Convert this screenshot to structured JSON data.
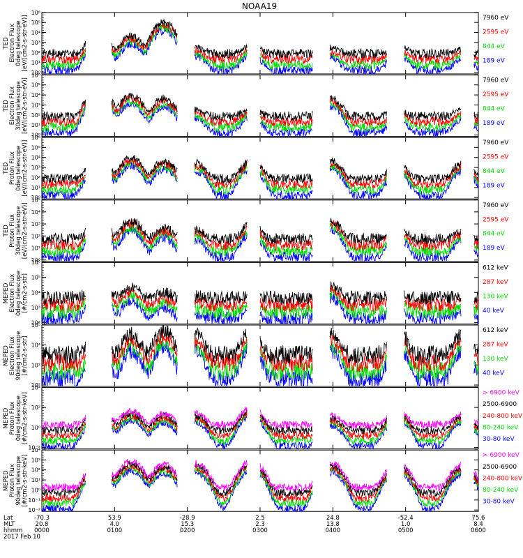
{
  "title": "NOAA19",
  "footer": {
    "row_labels": [
      "Lat",
      "MLT",
      "hhmm",
      "2017 Feb 10"
    ],
    "lat": [
      "-70.3",
      "53.9",
      "-28.9",
      "2.5",
      "24.8",
      "-52.4",
      "75.6"
    ],
    "mlt": [
      "20.8",
      "4.0",
      "15.3",
      "2.3",
      "13.8",
      "1.0",
      "8.4"
    ],
    "hhmm": [
      "0000",
      "0100",
      "0200",
      "0300",
      "0400",
      "0500",
      "0600"
    ]
  },
  "colors": {
    "black": "#000000",
    "red": "#ff0000",
    "green": "#00dd00",
    "blue": "#0000ff",
    "magenta": "#ff00ff"
  },
  "chart_data": [
    {
      "type": "line",
      "ylabel": [
        "TED",
        "Electron Flux",
        "0deg telescope",
        "[eV/(cm2-s-str-eV)]"
      ],
      "y_ticks": [
        "10⁰",
        "10¹",
        "10²",
        "10³",
        "10⁴",
        "10⁵",
        "10⁶"
      ],
      "y_scale": "log",
      "ylim": [
        1,
        1000000
      ],
      "series": [
        {
          "name": "7960 eV",
          "color": "#000000"
        },
        {
          "name": "2595 eV",
          "color": "#ff0000"
        },
        {
          "name": "844 eV",
          "color": "#00dd00"
        },
        {
          "name": "189 eV",
          "color": "#0000ff"
        }
      ],
      "bursts": [
        [
          0.26,
          10000.0
        ],
        [
          0.41,
          5000.0
        ],
        [
          0.56,
          100000.0
        ],
        [
          0.705,
          300.0
        ],
        [
          0.96,
          500.0
        ],
        [
          1.325,
          200.0
        ],
        [
          1.63,
          500.0
        ],
        [
          1.93,
          200.0
        ]
      ]
    },
    {
      "type": "line",
      "ylabel": [
        "TED",
        "Electron Flux",
        "30deg telescope",
        "[eV/(cm2-s-str-eV)]"
      ],
      "y_ticks": [
        "10⁰",
        "10¹",
        "10²",
        "10³",
        "10⁴",
        "10⁵",
        "10⁶"
      ],
      "y_scale": "log",
      "ylim": [
        1,
        1000000
      ],
      "series": [
        {
          "name": "7960 eV",
          "color": "#000000"
        },
        {
          "name": "2595 eV",
          "color": "#ff0000"
        },
        {
          "name": "844 eV",
          "color": "#00dd00"
        },
        {
          "name": "189 eV",
          "color": "#0000ff"
        }
      ],
      "bursts": [
        [
          0.26,
          50000.0
        ],
        [
          0.41,
          10000.0
        ],
        [
          0.56,
          5000.0
        ],
        [
          0.705,
          300.0
        ],
        [
          0.96,
          500.0
        ],
        [
          1.325,
          5000.0
        ],
        [
          1.63,
          300.0
        ],
        [
          1.93,
          300.0
        ]
      ]
    },
    {
      "type": "line",
      "ylabel": [
        "TED",
        "Proton Flux",
        "0deg telescope",
        "[eV/(cm2-s-str-eV)]"
      ],
      "y_ticks": [
        "10⁰",
        "10¹",
        "10²",
        "10³",
        "10⁴",
        "10⁵",
        "10⁶"
      ],
      "y_scale": "log",
      "ylim": [
        1,
        1000000
      ],
      "series": [
        {
          "name": "7960 eV",
          "color": "#000000"
        },
        {
          "name": "2595 eV",
          "color": "#ff0000"
        },
        {
          "name": "844 eV",
          "color": "#00dd00"
        },
        {
          "name": "189 eV",
          "color": "#0000ff"
        }
      ],
      "bursts": [
        [
          0.26,
          10000.0
        ],
        [
          0.41,
          10000.0
        ],
        [
          0.56,
          5000.0
        ],
        [
          0.705,
          3000.0
        ],
        [
          0.96,
          5000.0
        ],
        [
          1.325,
          5000.0
        ],
        [
          1.63,
          2000.0
        ],
        [
          1.93,
          3000.0
        ]
      ]
    },
    {
      "type": "line",
      "ylabel": [
        "TED",
        "Proton Flux",
        "30deg telescope",
        "[eV/(cm2-s-str-eV)]"
      ],
      "y_ticks": [
        "10⁰",
        "10¹",
        "10²",
        "10³",
        "10⁴",
        "10⁵"
      ],
      "y_scale": "log",
      "ylim": [
        1,
        100000
      ],
      "series": [
        {
          "name": "7960 eV",
          "color": "#000000"
        },
        {
          "name": "2595 eV",
          "color": "#ff0000"
        },
        {
          "name": "844 eV",
          "color": "#00dd00"
        },
        {
          "name": "189 eV",
          "color": "#0000ff"
        }
      ],
      "bursts": [
        [
          0.26,
          3000.0
        ],
        [
          0.41,
          2000.0
        ],
        [
          0.56,
          500.0
        ],
        [
          0.705,
          300.0
        ],
        [
          0.96,
          1000.0
        ],
        [
          1.325,
          2000.0
        ],
        [
          1.63,
          500.0
        ],
        [
          1.93,
          300.0
        ]
      ]
    },
    {
      "type": "line",
      "ylabel": [
        "MEPED",
        "Electron Flux",
        "0deg telescope",
        "[#/cm2-s-str]"
      ],
      "y_ticks": [
        "10²",
        "10³",
        "10⁴",
        "10⁵",
        "10⁶"
      ],
      "y_scale": "log",
      "ylim": [
        100,
        1000000
      ],
      "series": [
        {
          "name": "612 keV",
          "color": "#000000"
        },
        {
          "name": "287 keV",
          "color": "#ff0000"
        },
        {
          "name": "130 keV",
          "color": "#00dd00"
        },
        {
          "name": "40 keV",
          "color": "#0000ff"
        }
      ],
      "bursts": [
        [
          0.26,
          100000.0
        ],
        [
          0.41,
          20000.0
        ],
        [
          0.56,
          5000.0
        ],
        [
          0.705,
          1000.0
        ],
        [
          0.96,
          3000.0
        ],
        [
          1.325,
          30000.0
        ],
        [
          1.63,
          5000.0
        ],
        [
          1.93,
          2000.0
        ]
      ]
    },
    {
      "type": "line",
      "ylabel": [
        "MEPED",
        "Electron Flux",
        "90deg telescope",
        "[#/cm2-s-str]"
      ],
      "y_ticks": [
        "10²",
        "10³",
        "10⁴",
        "10⁵"
      ],
      "y_scale": "log",
      "ylim": [
        100,
        100000
      ],
      "series": [
        {
          "name": "612 keV",
          "color": "#000000"
        },
        {
          "name": "287 keV",
          "color": "#ff0000"
        },
        {
          "name": "130 keV",
          "color": "#00dd00"
        },
        {
          "name": "40 keV",
          "color": "#0000ff"
        }
      ],
      "bursts": [
        [
          0.26,
          50000.0
        ],
        [
          0.41,
          30000.0
        ],
        [
          0.56,
          50000.0
        ],
        [
          0.705,
          30000.0
        ],
        [
          0.96,
          50000.0
        ],
        [
          1.325,
          30000.0
        ],
        [
          1.63,
          50000.0
        ],
        [
          1.93,
          30000.0
        ]
      ]
    },
    {
      "type": "line",
      "ylabel": [
        "MEPED",
        "Proton Flux",
        "0deg telescope",
        "[#/cm2-s-str-keV]"
      ],
      "y_ticks": [
        "10⁻²",
        "10⁰",
        "10²",
        "10⁴"
      ],
      "y_scale": "log",
      "ylim": [
        0.01,
        100000
      ],
      "series": [
        {
          "name": "> 6900 keV",
          "color": "#ff00ff"
        },
        {
          "name": "2500-6900",
          "color": "#000000"
        },
        {
          "name": "240-800 keV",
          "color": "#ff0000"
        },
        {
          "name": "80-240 keV",
          "color": "#00dd00"
        },
        {
          "name": "30-80 keV",
          "color": "#0000ff"
        }
      ],
      "bursts": [
        [
          0.26,
          500.0
        ],
        [
          0.41,
          200.0
        ],
        [
          0.56,
          100.0
        ],
        [
          0.705,
          100.0
        ],
        [
          0.96,
          500.0
        ],
        [
          1.325,
          50.0
        ],
        [
          1.63,
          200.0
        ],
        [
          1.93,
          100.0
        ]
      ]
    },
    {
      "type": "line",
      "ylabel": [
        "MEPED",
        "Proton Flux",
        "90deg telescope",
        "[#/cm2-s-str-keV]"
      ],
      "y_ticks": [
        "10⁻²",
        "10⁻¹",
        "10⁰",
        "10¹",
        "10²",
        "10³",
        "10⁴"
      ],
      "y_scale": "log",
      "ylim": [
        0.01,
        100000
      ],
      "series": [
        {
          "name": "> 6900 keV",
          "color": "#ff00ff"
        },
        {
          "name": "2500-6900",
          "color": "#000000"
        },
        {
          "name": "240-800 keV",
          "color": "#ff0000"
        },
        {
          "name": "80-240 keV",
          "color": "#00dd00"
        },
        {
          "name": "30-80 keV",
          "color": "#0000ff"
        }
      ],
      "bursts": [
        [
          0.26,
          3000.0
        ],
        [
          0.41,
          5000.0
        ],
        [
          0.56,
          2000.0
        ],
        [
          0.705,
          3000.0
        ],
        [
          0.96,
          5000.0
        ],
        [
          1.325,
          3000.0
        ],
        [
          1.63,
          3000.0
        ],
        [
          1.93,
          2000.0
        ]
      ]
    }
  ]
}
